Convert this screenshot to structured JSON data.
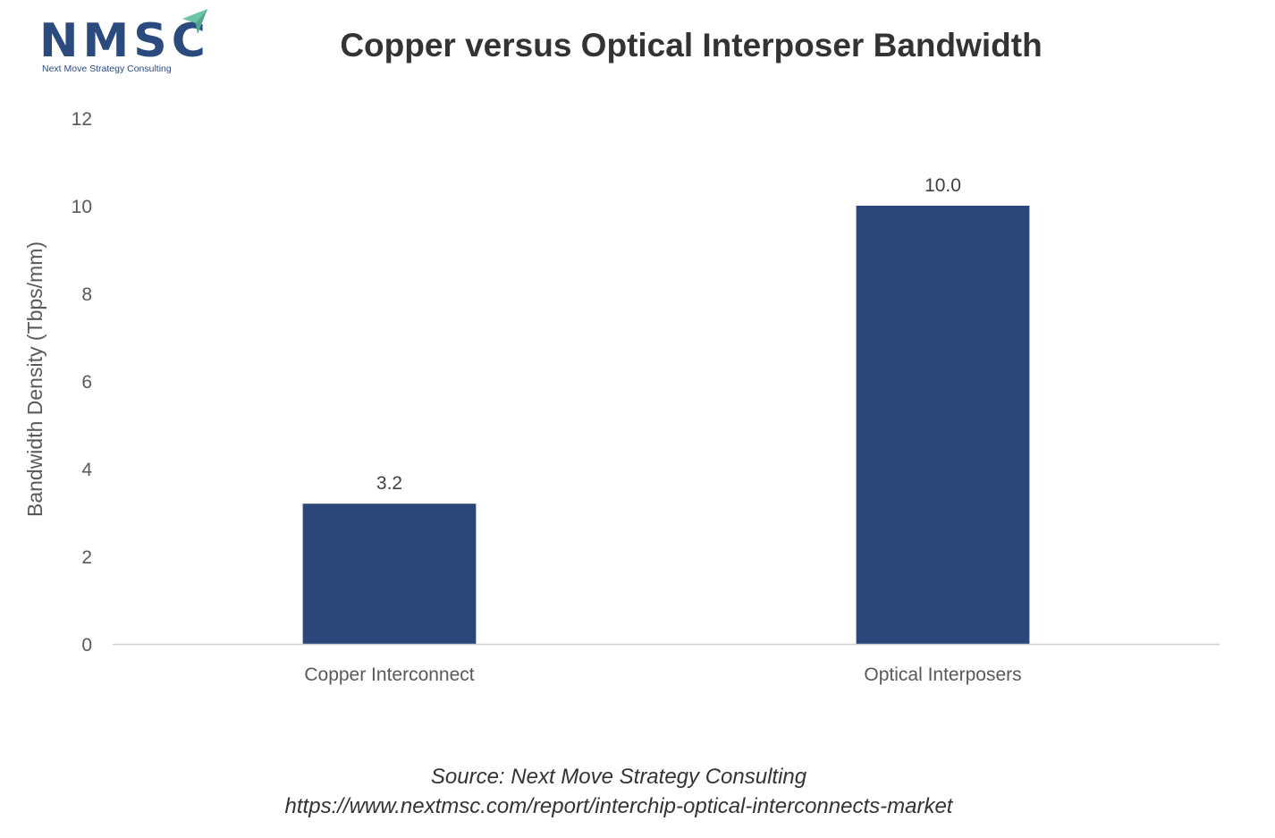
{
  "logo": {
    "name": "NMSC",
    "tagline": "Next Move Strategy Consulting",
    "accent_color": "#6cc4a4",
    "brand_color": "#2b4a7e"
  },
  "chart_data": {
    "type": "bar",
    "title": "Copper versus Optical Interposer Bandwidth",
    "xlabel": "",
    "ylabel": "Bandwidth Density (Tbps/mm)",
    "categories": [
      "Copper Interconnect",
      "Optical Interposers"
    ],
    "values": [
      3.2,
      10.0
    ],
    "data_labels": [
      "3.2",
      "10.0"
    ],
    "ylim": [
      0,
      12
    ],
    "yticks": [
      0,
      2,
      4,
      6,
      8,
      10,
      12
    ],
    "bar_color": "#2b4779",
    "grid": false,
    "legend": "none"
  },
  "source": {
    "line1": "Source: Next Move Strategy Consulting",
    "line2": "https://www.nextmsc.com/report/interchip-optical-interconnects-market"
  }
}
